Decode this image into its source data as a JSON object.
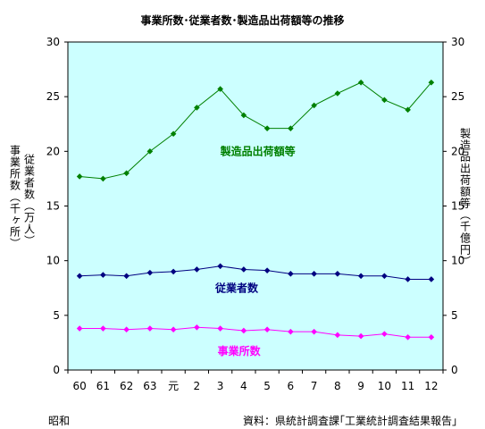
{
  "chart_data": {
    "type": "line",
    "title": "事業所数･従業者数･製造品出荷額等の推移",
    "categories": [
      "60",
      "61",
      "62",
      "63",
      "元",
      "2",
      "3",
      "4",
      "5",
      "6",
      "7",
      "8",
      "9",
      "10",
      "11",
      "12"
    ],
    "era_label": "昭和",
    "ylabel_left": [
      "事業所数（千ヶ所）",
      "従業者数（万人）"
    ],
    "ylabel_right": "製造品出荷額等（千億円）",
    "ylim": [
      0,
      30
    ],
    "yticks": [
      "0",
      "5",
      "10",
      "15",
      "20",
      "25",
      "30"
    ],
    "grid": false,
    "series": [
      {
        "name": "製造品出荷額等",
        "color": "#008000",
        "values": [
          17.7,
          17.5,
          18.0,
          20.0,
          21.6,
          24.0,
          25.7,
          23.3,
          22.1,
          22.1,
          24.2,
          25.3,
          26.3,
          24.7,
          23.8,
          26.3
        ]
      },
      {
        "name": "従業者数",
        "color": "#000080",
        "values": [
          8.6,
          8.7,
          8.6,
          8.9,
          9.0,
          9.2,
          9.5,
          9.2,
          9.1,
          8.8,
          8.8,
          8.8,
          8.6,
          8.6,
          8.3,
          8.3
        ]
      },
      {
        "name": "事業所数",
        "color": "#ff00ff",
        "values": [
          3.8,
          3.8,
          3.7,
          3.8,
          3.7,
          3.9,
          3.8,
          3.6,
          3.7,
          3.5,
          3.5,
          3.2,
          3.1,
          3.3,
          3.0,
          3.0
        ]
      }
    ],
    "source": "資料：県統計調査課｢工業統計調査結果報告｣"
  }
}
